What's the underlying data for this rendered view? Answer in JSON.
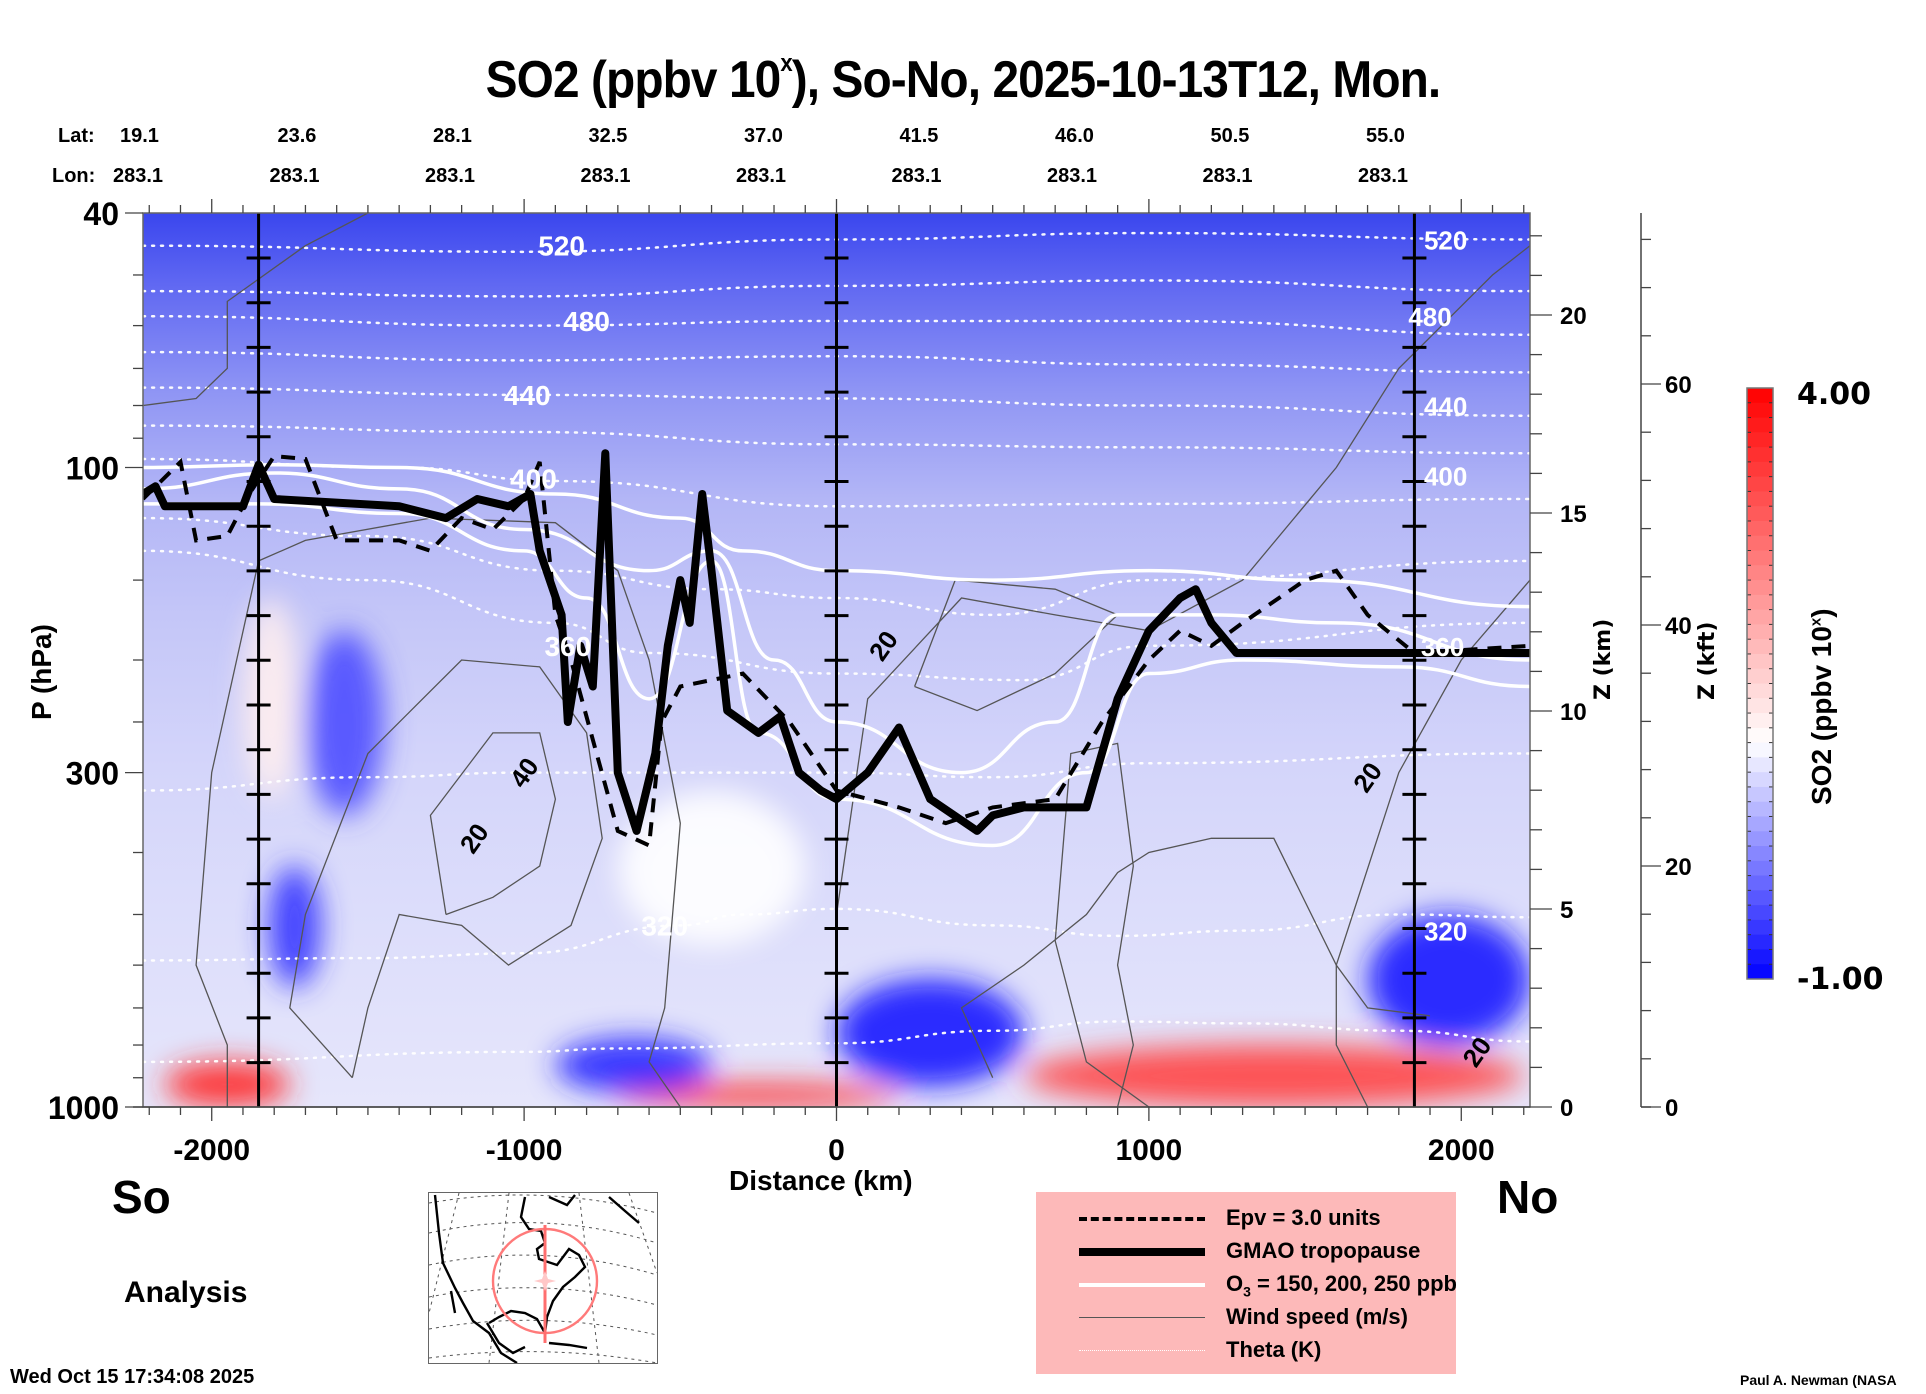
{
  "chart_data": {
    "type": "heatmap",
    "title": "SO2 (ppbv 10",
    "title_sup": "x",
    "title_rest": "), So-No, 2025-10-13T12, Mon.",
    "xlabel": "Distance (km)",
    "ylabel": "P (hPa)",
    "y2label": "Z (km)",
    "y3label": "Z (kft)",
    "xlim": [
      -2220,
      2220
    ],
    "ylim_hpa": [
      1000,
      40
    ],
    "yscale": "log",
    "x_ticks": [
      {
        "value": -2000,
        "label": "-2000"
      },
      {
        "value": -1000,
        "label": "-1000"
      },
      {
        "value": 0,
        "label": "0"
      },
      {
        "value": 1000,
        "label": "1000"
      },
      {
        "value": 2000,
        "label": "2000"
      }
    ],
    "y_ticks": [
      {
        "value": 40,
        "label": "40"
      },
      {
        "value": 100,
        "label": "100"
      },
      {
        "value": 300,
        "label": "300"
      },
      {
        "value": 1000,
        "label": "1000"
      }
    ],
    "z_km_ticks": [
      {
        "value": 0,
        "label": "0"
      },
      {
        "value": 5,
        "label": "5"
      },
      {
        "value": 10,
        "label": "10"
      },
      {
        "value": 15,
        "label": "15"
      },
      {
        "value": 20,
        "label": "20"
      }
    ],
    "z_kft_ticks": [
      {
        "value": 0,
        "label": "0"
      },
      {
        "value": 20,
        "label": "20"
      },
      {
        "value": 40,
        "label": "40"
      },
      {
        "value": 60,
        "label": "60"
      }
    ],
    "lat_label": "Lat:",
    "lon_label": "Lon:",
    "stations": [
      {
        "lat": "19.1",
        "lon": "283.1"
      },
      {
        "lat": "23.6",
        "lon": "283.1"
      },
      {
        "lat": "28.1",
        "lon": "283.1"
      },
      {
        "lat": "32.5",
        "lon": "283.1"
      },
      {
        "lat": "37.0",
        "lon": "283.1"
      },
      {
        "lat": "41.5",
        "lon": "283.1"
      },
      {
        "lat": "46.0",
        "lon": "283.1"
      },
      {
        "lat": "50.5",
        "lon": "283.1"
      },
      {
        "lat": "55.0",
        "lon": "283.1"
      }
    ],
    "vertical_markers_km": [
      -1850,
      0,
      1850
    ],
    "colorbar": {
      "label": "SO2 (ppbv 10",
      "label_sup": "x",
      "label_rest": ")",
      "min": -1.0,
      "max": 4.0,
      "min_label": "-1.00",
      "max_label": "4.00",
      "levels": 40,
      "low_color": "#0000ff",
      "mid_color": "#ffffff",
      "high_color": "#ff0000",
      "mid_value": 1.0
    },
    "theta_contours": [
      {
        "label": "520",
        "points": [
          [
            -2220,
            45
          ],
          [
            -1000,
            46
          ],
          [
            0,
            44
          ],
          [
            1000,
            43
          ],
          [
            2220,
            44
          ]
        ]
      },
      {
        "label": "",
        "points": [
          [
            -2220,
            53
          ],
          [
            -1000,
            54
          ],
          [
            0,
            52
          ],
          [
            1000,
            51
          ],
          [
            2220,
            53
          ]
        ]
      },
      {
        "label": "480",
        "points": [
          [
            -2220,
            58
          ],
          [
            -1000,
            60
          ],
          [
            0,
            59
          ],
          [
            1000,
            59
          ],
          [
            2220,
            62
          ]
        ]
      },
      {
        "label": "",
        "points": [
          [
            -2220,
            66
          ],
          [
            -1000,
            68
          ],
          [
            0,
            67
          ],
          [
            1000,
            69
          ],
          [
            2220,
            71
          ]
        ]
      },
      {
        "label": "440",
        "points": [
          [
            -2220,
            75
          ],
          [
            -1000,
            77
          ],
          [
            0,
            78
          ],
          [
            1000,
            80
          ],
          [
            2220,
            83
          ]
        ]
      },
      {
        "label": "",
        "points": [
          [
            -2220,
            86
          ],
          [
            -1000,
            88
          ],
          [
            0,
            92
          ],
          [
            1000,
            93
          ],
          [
            2220,
            95
          ]
        ]
      },
      {
        "label": "400",
        "points": [
          [
            -2220,
            97
          ],
          [
            -1400,
            100
          ],
          [
            -900,
            105
          ],
          [
            0,
            115
          ],
          [
            1000,
            114
          ],
          [
            2220,
            112
          ]
        ]
      },
      {
        "label": "",
        "points": [
          [
            -2220,
            120
          ],
          [
            -1500,
            128
          ],
          [
            -900,
            145
          ],
          [
            -400,
            155
          ],
          [
            0,
            160
          ],
          [
            500,
            170
          ],
          [
            1000,
            150
          ],
          [
            2220,
            140
          ]
        ]
      },
      {
        "label": "360",
        "points": [
          [
            -2220,
            135
          ],
          [
            -1500,
            150
          ],
          [
            -900,
            175
          ],
          [
            -600,
            195
          ],
          [
            0,
            210
          ],
          [
            600,
            215
          ],
          [
            1000,
            190
          ],
          [
            2220,
            175
          ]
        ]
      },
      {
        "label": "",
        "points": [
          [
            -2220,
            320
          ],
          [
            -1500,
            305
          ],
          [
            -1000,
            300
          ],
          [
            -500,
            300
          ],
          [
            0,
            300
          ],
          [
            500,
            305
          ],
          [
            1000,
            290
          ],
          [
            2220,
            280
          ]
        ]
      },
      {
        "label": "320",
        "points": [
          [
            -2220,
            590
          ],
          [
            -1500,
            585
          ],
          [
            -1000,
            575
          ],
          [
            -500,
            520
          ],
          [
            -300,
            500
          ],
          [
            0,
            490
          ],
          [
            500,
            520
          ],
          [
            900,
            540
          ],
          [
            1300,
            530
          ],
          [
            1800,
            500
          ],
          [
            2220,
            505
          ]
        ]
      },
      {
        "label": "",
        "points": [
          [
            -2220,
            850
          ],
          [
            -1000,
            820
          ],
          [
            -700,
            810
          ],
          [
            0,
            795
          ],
          [
            500,
            760
          ],
          [
            900,
            735
          ],
          [
            1300,
            740
          ],
          [
            1800,
            760
          ],
          [
            2220,
            790
          ]
        ]
      }
    ],
    "tropopause_gmao": [
      [
        -2220,
        110
      ],
      [
        -2180,
        107
      ],
      [
        -2150,
        115
      ],
      [
        -1900,
        115
      ],
      [
        -1850,
        99
      ],
      [
        -1800,
        112
      ],
      [
        -1400,
        115
      ],
      [
        -1250,
        120
      ],
      [
        -1150,
        112
      ],
      [
        -1050,
        115
      ],
      [
        -980,
        110
      ],
      [
        -950,
        135
      ],
      [
        -880,
        170
      ],
      [
        -860,
        250
      ],
      [
        -820,
        190
      ],
      [
        -780,
        220
      ],
      [
        -740,
        95
      ],
      [
        -700,
        300
      ],
      [
        -640,
        370
      ],
      [
        -580,
        280
      ],
      [
        -540,
        190
      ],
      [
        -500,
        150
      ],
      [
        -470,
        175
      ],
      [
        -430,
        110
      ],
      [
        -400,
        145
      ],
      [
        -350,
        240
      ],
      [
        -250,
        260
      ],
      [
        -180,
        245
      ],
      [
        -120,
        300
      ],
      [
        -50,
        320
      ],
      [
        0,
        330
      ],
      [
        100,
        300
      ],
      [
        200,
        255
      ],
      [
        300,
        330
      ],
      [
        450,
        370
      ],
      [
        500,
        350
      ],
      [
        600,
        340
      ],
      [
        800,
        340
      ],
      [
        900,
        230
      ],
      [
        1000,
        180
      ],
      [
        1100,
        160
      ],
      [
        1150,
        155
      ],
      [
        1200,
        175
      ],
      [
        1280,
        195
      ],
      [
        1900,
        195
      ],
      [
        2220,
        195
      ]
    ],
    "epv_3pvu": [
      [
        -2220,
        112
      ],
      [
        -2100,
        98
      ],
      [
        -2050,
        130
      ],
      [
        -1950,
        128
      ],
      [
        -1880,
        110
      ],
      [
        -1800,
        96
      ],
      [
        -1700,
        97
      ],
      [
        -1600,
        130
      ],
      [
        -1400,
        130
      ],
      [
        -1300,
        135
      ],
      [
        -1200,
        120
      ],
      [
        -1100,
        125
      ],
      [
        -1000,
        112
      ],
      [
        -950,
        98
      ],
      [
        -900,
        170
      ],
      [
        -850,
        200
      ],
      [
        -700,
        370
      ],
      [
        -600,
        390
      ],
      [
        -560,
        250
      ],
      [
        -500,
        220
      ],
      [
        -300,
        210
      ],
      [
        -150,
        250
      ],
      [
        0,
        320
      ],
      [
        200,
        340
      ],
      [
        350,
        360
      ],
      [
        500,
        340
      ],
      [
        700,
        330
      ],
      [
        850,
        250
      ],
      [
        1000,
        200
      ],
      [
        1100,
        180
      ],
      [
        1200,
        190
      ],
      [
        1300,
        175
      ],
      [
        1500,
        150
      ],
      [
        1600,
        145
      ],
      [
        1700,
        170
      ],
      [
        1850,
        195
      ],
      [
        2220,
        190
      ]
    ],
    "ozone_150_200_250_ppb": [
      [
        [
          -2220,
          100
        ],
        [
          -1800,
          99
        ],
        [
          -1400,
          100
        ],
        [
          -900,
          110
        ],
        [
          -500,
          120
        ],
        [
          -300,
          135
        ],
        [
          0,
          145
        ],
        [
          500,
          150
        ],
        [
          1000,
          145
        ],
        [
          1500,
          150
        ],
        [
          2220,
          165
        ]
      ],
      [
        [
          -2220,
          108
        ],
        [
          -1800,
          102
        ],
        [
          -1400,
          108
        ],
        [
          -1000,
          125
        ],
        [
          -600,
          145
        ],
        [
          -400,
          135
        ],
        [
          -200,
          200
        ],
        [
          0,
          250
        ],
        [
          400,
          300
        ],
        [
          700,
          250
        ],
        [
          900,
          170
        ],
        [
          1200,
          170
        ],
        [
          1600,
          175
        ],
        [
          2220,
          200
        ]
      ],
      [
        [
          -2220,
          114
        ],
        [
          -1850,
          114
        ],
        [
          -1400,
          118
        ],
        [
          -1000,
          135
        ],
        [
          -800,
          160
        ],
        [
          -600,
          230
        ],
        [
          -400,
          140
        ],
        [
          -250,
          260
        ],
        [
          0,
          330
        ],
        [
          500,
          390
        ],
        [
          800,
          300
        ],
        [
          1000,
          210
        ],
        [
          1300,
          200
        ],
        [
          1800,
          205
        ],
        [
          2220,
          220
        ]
      ]
    ],
    "wind_speed_labels": [
      {
        "value": "20",
        "x_km": 150,
        "p_hpa": 190
      },
      {
        "value": "40",
        "x_km": -1000,
        "p_hpa": 300
      },
      {
        "value": "20",
        "x_km": -1160,
        "p_hpa": 380
      },
      {
        "value": "20",
        "x_km": 1700,
        "p_hpa": 305
      },
      {
        "value": "20",
        "x_km": 2050,
        "p_hpa": 820
      }
    ],
    "so2_features": [
      {
        "kind": "high",
        "x_km": [
          -2150,
          -1750
        ],
        "p_hpa": [
          850,
          1000
        ],
        "value": 3.5
      },
      {
        "kind": "high",
        "x_km": [
          -700,
          200
        ],
        "p_hpa": [
          920,
          1000
        ],
        "value": 3.5
      },
      {
        "kind": "high",
        "x_km": [
          600,
          2200
        ],
        "p_hpa": [
          800,
          1000
        ],
        "value": 3.2
      },
      {
        "kind": "low",
        "x_km": [
          -1700,
          -1450
        ],
        "p_hpa": [
          180,
          350
        ],
        "value": -0.4
      },
      {
        "kind": "low",
        "x_km": [
          -1820,
          -1650
        ],
        "p_hpa": [
          420,
          650
        ],
        "value": -0.6
      },
      {
        "kind": "low",
        "x_km": [
          -900,
          -400
        ],
        "p_hpa": [
          780,
          950
        ],
        "value": -0.7
      },
      {
        "kind": "low",
        "x_km": [
          0,
          600
        ],
        "p_hpa": [
          630,
          930
        ],
        "value": -0.8
      },
      {
        "kind": "low",
        "x_km": [
          1700,
          2220
        ],
        "p_hpa": [
          500,
          800
        ],
        "value": -0.8
      },
      {
        "kind": "near_zero",
        "x_km": [
          -700,
          -100
        ],
        "p_hpa": [
          320,
          560
        ],
        "value": 1.0
      },
      {
        "kind": "near_zero",
        "x_km": [
          -1900,
          -1720
        ],
        "p_hpa": [
          160,
          330
        ],
        "value": 1.2
      }
    ]
  },
  "region_labels": {
    "south": "So",
    "north": "No"
  },
  "product_label": "Analysis",
  "timestamp": "Wed Oct 15 17:34:08 2025",
  "credit": "Paul A. Newman (NASA",
  "legend": {
    "items": [
      {
        "label": "Epv = 3.0 units",
        "style": "dashed"
      },
      {
        "label": "GMAO tropopause",
        "style": "thick"
      },
      {
        "label_pre": "O",
        "label_sub": "3",
        "label_post": " = 150, 200, 250 ppb",
        "style": "white"
      },
      {
        "label": "Wind speed (m/s)",
        "style": "thin"
      },
      {
        "label": "Theta (K)",
        "style": "dotted"
      }
    ]
  },
  "map_inset": {
    "region": "North America",
    "track_color": "#ff6f6f",
    "center_marker": "star"
  }
}
